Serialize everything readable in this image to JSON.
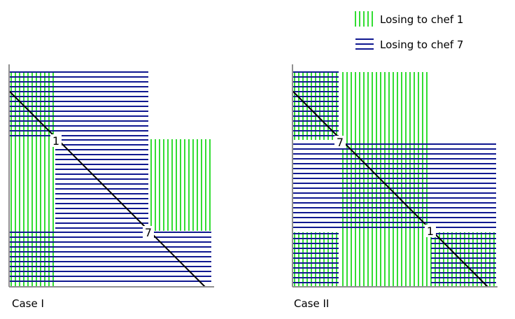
{
  "legend": {
    "chef1_label": "Losing to chef 1",
    "chef7_label": "Losing to chef 7"
  },
  "colors": {
    "chef1": "#33dd33",
    "chef7": "#101890",
    "axis": "#909090",
    "diagonal": "#000000",
    "text": "#000000"
  },
  "panels": [
    {
      "caption": "Case I",
      "first_marker": "1",
      "second_marker": "7"
    },
    {
      "caption": "Case II",
      "first_marker": "7",
      "second_marker": "1"
    }
  ]
}
